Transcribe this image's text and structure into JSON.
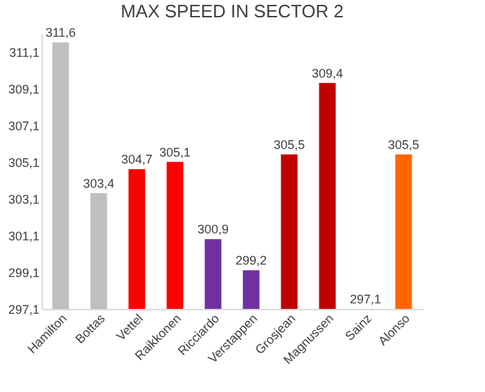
{
  "chart_data": {
    "type": "bar",
    "title": "MAX SPEED IN SECTOR 2",
    "categories": [
      "Hamilton",
      "Bottas",
      "Vettel",
      "Raikkonen",
      "Ricciardo",
      "Verstappen",
      "Grosjean",
      "Magnussen",
      "Sainz",
      "Alonso"
    ],
    "values": [
      311.6,
      303.4,
      304.7,
      305.1,
      300.9,
      299.2,
      305.5,
      309.4,
      297.1,
      305.5
    ],
    "colors": [
      "#bfbfbf",
      "#bfbfbf",
      "#ff0000",
      "#ff0000",
      "#7030a0",
      "#7030a0",
      "#c00000",
      "#c00000",
      "#ffc000",
      "#ff6600"
    ],
    "value_labels": [
      "311,6",
      "303,4",
      "304,7",
      "305,1",
      "300,9",
      "299,2",
      "305,5",
      "309,4",
      "297,1",
      "305,5"
    ],
    "ylim": [
      297.1,
      312.1
    ],
    "yticks": [
      {
        "value": 297.1,
        "label": "297,1"
      },
      {
        "value": 299.1,
        "label": "299,1"
      },
      {
        "value": 301.1,
        "label": "301,1"
      },
      {
        "value": 303.1,
        "label": "303,1"
      },
      {
        "value": 305.1,
        "label": "305,1"
      },
      {
        "value": 307.1,
        "label": "307,1"
      },
      {
        "value": 309.1,
        "label": "309,1"
      },
      {
        "value": 311.1,
        "label": "311,1"
      }
    ],
    "grid": false,
    "legend": false
  }
}
